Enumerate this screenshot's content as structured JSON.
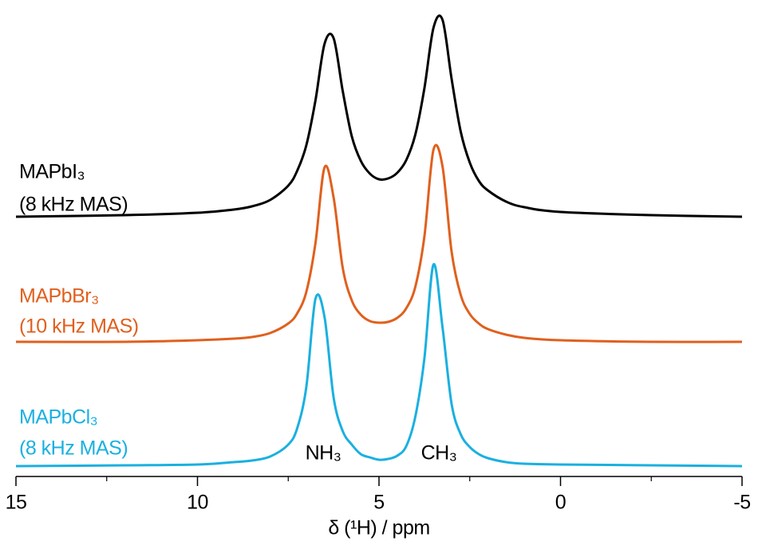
{
  "chart_data": {
    "type": "line",
    "xlabel": "δ (¹H) / ppm",
    "xlim": [
      15,
      -5
    ],
    "xticks": [
      15,
      10,
      5,
      0,
      -5
    ],
    "xminorticks": [
      12.5,
      7.5,
      2.5,
      -2.5
    ],
    "x": [
      15,
      12,
      10,
      9,
      8.5,
      8,
      7.5,
      7.25,
      7,
      6.75,
      6.5,
      6.25,
      6,
      5.75,
      5.5,
      5.25,
      5,
      4.75,
      4.5,
      4.25,
      4,
      3.75,
      3.5,
      3.25,
      3,
      2.75,
      2.5,
      2.25,
      2,
      1.5,
      1,
      0,
      -2.5,
      -5
    ],
    "series": [
      {
        "name": "MAPbI₃",
        "conditions": "(8 kHz MAS)",
        "color": "#000000",
        "values": [
          1,
          3,
          6,
          10,
          14,
          22,
          40,
          59,
          91,
          147,
          218,
          225,
          159,
          102,
          71,
          55,
          48,
          49,
          56,
          72,
          104,
          162,
          238,
          248,
          174,
          108,
          69,
          46,
          34,
          20,
          13,
          7,
          3,
          1
        ]
      },
      {
        "name": "MAPbBr₃",
        "conditions": "(10 kHz MAS)",
        "color": "#e0601e",
        "values": [
          1,
          1,
          3,
          5,
          7,
          12,
          24,
          37,
          64,
          125,
          220,
          182,
          94,
          53,
          35,
          27,
          25,
          26,
          31,
          43,
          70,
          133,
          242,
          221,
          114,
          60,
          36,
          24,
          17,
          10,
          6,
          3,
          1,
          1
        ]
      },
      {
        "name": "MAPbCl₃",
        "conditions": "(8 kHz MAS)",
        "color": "#1ab0e0",
        "values": [
          0,
          1,
          2,
          5,
          7,
          12,
          27,
          48,
          100,
          210,
          187,
          86,
          44,
          27,
          15,
          11,
          8,
          9,
          13,
          25,
          62,
          135,
          253,
          174,
          78,
          40,
          24,
          15,
          10,
          5,
          3,
          2,
          1,
          0
        ]
      }
    ],
    "annotations": [
      "NH₃",
      "CH₃"
    ]
  }
}
